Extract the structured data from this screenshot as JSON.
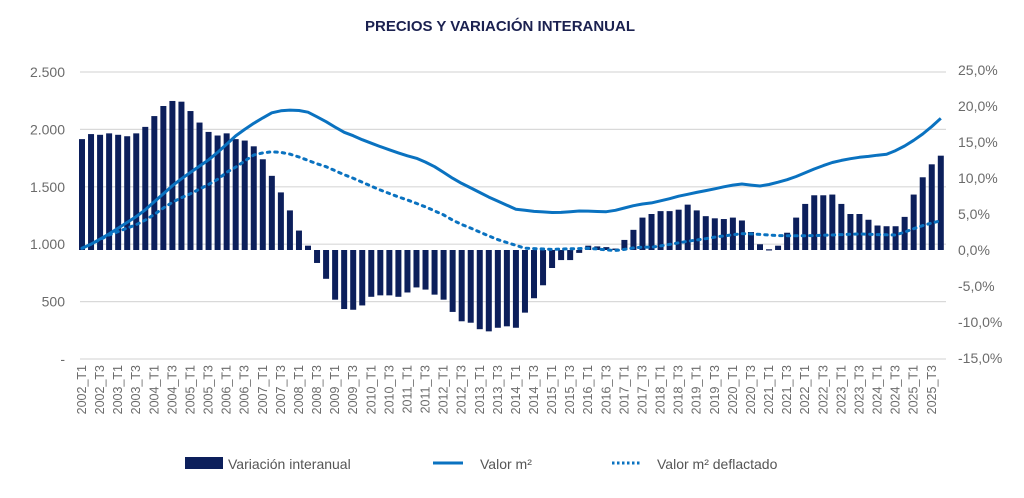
{
  "chart_data": {
    "type": "bar+line",
    "title": "PRECIOS Y VARIACIÓN INTERANUAL",
    "colors": {
      "bars": "#0c1f5b",
      "line": "#0a72c0",
      "dotted": "#0a72c0",
      "grid": "#d9d9d9",
      "title": "#1b2150"
    },
    "left_axis": {
      "ylim": [
        0,
        2500
      ],
      "ticks": [
        0,
        500,
        1000,
        1500,
        2000,
        2500
      ],
      "tick_labels": [
        "-",
        "500",
        "1.000",
        "1.500",
        "2.000",
        "2.500"
      ]
    },
    "right_axis": {
      "ylim": [
        -15,
        25
      ],
      "ticks": [
        -15,
        -10,
        -5,
        0,
        5,
        10,
        15,
        20,
        25
      ],
      "tick_labels": [
        "-15,0%",
        "-10,0%",
        "-5,0%",
        "0,0%",
        "5,0%",
        "10,0%",
        "15,0%",
        "20,0%",
        "25,0%"
      ]
    },
    "x_range": "2002 T1 – 2025 T4 (quarterly)",
    "x_tick_labels": [
      "2002_T1",
      "2002_T3",
      "2003_T1",
      "2003_T3",
      "2004_T1",
      "2004_T3",
      "2005_T1",
      "2005_T3",
      "2006_T1",
      "2006_T3",
      "2007_T1",
      "2007_T3",
      "2008_T1",
      "2008_T3",
      "2009_T1",
      "2009_T3",
      "2010_T1",
      "2010_T3",
      "2011_T1",
      "2011_T3",
      "2012_T1",
      "2012_T3",
      "2013_T1",
      "2013_T3",
      "2014_T1",
      "2014_T3",
      "2015_T1",
      "2015_T3",
      "2016_T1",
      "2016_T3",
      "2017_T1",
      "2017_T3",
      "2018_T1",
      "2018_T3",
      "2019_T1",
      "2019_T3",
      "2020_T1",
      "2020_T3",
      "2021_T1",
      "2021_T3",
      "2022_T1",
      "2022_T3",
      "2023_T1",
      "2023_T3",
      "2024_T1",
      "2024_T3",
      "2025_T1",
      "2025_T3"
    ],
    "grid": true,
    "legend_position": "bottom",
    "series": [
      {
        "name": "Variación interanual",
        "type": "bar",
        "axis": "right",
        "unit": "%",
        "values": [
          15.4,
          16.1,
          16.0,
          16.2,
          16.0,
          15.8,
          16.2,
          17.1,
          18.6,
          20.0,
          20.7,
          20.6,
          19.3,
          17.7,
          16.4,
          15.9,
          16.2,
          15.4,
          15.2,
          14.4,
          12.6,
          10.3,
          8.0,
          5.5,
          2.7,
          0.6,
          -1.8,
          -4.0,
          -6.9,
          -8.2,
          -8.3,
          -7.7,
          -6.5,
          -6.3,
          -6.3,
          -6.5,
          -5.9,
          -5.2,
          -5.5,
          -6.2,
          -6.9,
          -8.6,
          -9.9,
          -10.1,
          -11.0,
          -11.3,
          -10.8,
          -10.6,
          -10.8,
          -8.7,
          -6.7,
          -4.9,
          -2.5,
          -1.4,
          -1.4,
          -0.4,
          0.6,
          0.5,
          0.4,
          0.2,
          1.4,
          2.8,
          4.5,
          5.0,
          5.4,
          5.4,
          5.6,
          6.3,
          5.5,
          4.7,
          4.4,
          4.3,
          4.5,
          4.1,
          2.5,
          0.8,
          0.1,
          0.6,
          2.4,
          4.5,
          6.4,
          7.6,
          7.6,
          7.7,
          6.4,
          5.0,
          5.0,
          4.2,
          3.4,
          3.3,
          3.3,
          4.6,
          7.7,
          10.1,
          11.9,
          13.1
        ]
      },
      {
        "name": "Valor m²",
        "type": "line",
        "axis": "left",
        "values": [
          964,
          1000,
          1045,
          1090,
          1140,
          1190,
          1240,
          1300,
          1370,
          1440,
          1510,
          1570,
          1625,
          1680,
          1735,
          1800,
          1870,
          1943,
          2000,
          2053,
          2100,
          2145,
          2162,
          2168,
          2165,
          2150,
          2110,
          2067,
          2020,
          1975,
          1945,
          1910,
          1880,
          1850,
          1822,
          1795,
          1770,
          1748,
          1715,
          1675,
          1625,
          1575,
          1530,
          1490,
          1450,
          1410,
          1375,
          1340,
          1305,
          1295,
          1286,
          1281,
          1276,
          1277,
          1283,
          1289,
          1288,
          1285,
          1283,
          1295,
          1315,
          1335,
          1350,
          1360,
          1378,
          1396,
          1418,
          1435,
          1451,
          1467,
          1483,
          1500,
          1515,
          1524,
          1515,
          1507,
          1520,
          1540,
          1562,
          1590,
          1622,
          1655,
          1685,
          1712,
          1730,
          1745,
          1757,
          1765,
          1775,
          1783,
          1815,
          1855,
          1905,
          1960,
          2025,
          2097
        ]
      },
      {
        "name": "Valor m² deflactado",
        "type": "line-dotted",
        "axis": "left",
        "values": [
          964,
          1000,
          1040,
          1080,
          1110,
          1140,
          1170,
          1210,
          1260,
          1315,
          1365,
          1405,
          1440,
          1480,
          1520,
          1565,
          1625,
          1672,
          1725,
          1777,
          1795,
          1805,
          1800,
          1785,
          1760,
          1730,
          1700,
          1675,
          1640,
          1605,
          1575,
          1540,
          1505,
          1472,
          1442,
          1412,
          1385,
          1355,
          1325,
          1290,
          1255,
          1210,
          1172,
          1140,
          1105,
          1072,
          1040,
          1015,
          990,
          965,
          962,
          958,
          955,
          957,
          960,
          962,
          964,
          958,
          950,
          945,
          955,
          968,
          975,
          974,
          985,
          998,
          1012,
          1025,
          1037,
          1048,
          1062,
          1072,
          1082,
          1092,
          1090,
          1085,
          1080,
          1075,
          1074,
          1074,
          1074,
          1075,
          1078,
          1080,
          1084,
          1087,
          1089,
          1087,
          1084,
          1082,
          1080,
          1105,
          1135,
          1162,
          1185,
          1205
        ]
      }
    ]
  }
}
